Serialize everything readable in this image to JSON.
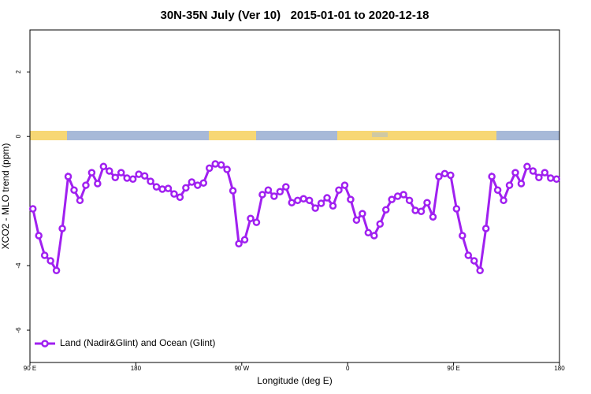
{
  "chart_data": {
    "type": "line",
    "title": "30N-35N July (Ver 10)   2015-01-01 to 2020-12-18",
    "x_label": "Longitude (deg E)",
    "y_label": "XCO2 - MLO trend (ppm)",
    "x": [
      92.5,
      97.5,
      102.5,
      107.5,
      112.5,
      117.5,
      122.5,
      127.5,
      132.5,
      137.5,
      142.5,
      147.5,
      152.5,
      157.5,
      162.5,
      167.5,
      172.5,
      177.5,
      182.5,
      187.5,
      192.5,
      197.5,
      202.5,
      207.5,
      212.5,
      217.5,
      222.5,
      227.5,
      232.5,
      237.5,
      242.5,
      247.5,
      252.5,
      257.5,
      262.5,
      267.5,
      272.5,
      277.5,
      282.5,
      287.5,
      292.5,
      297.5,
      302.5,
      307.5,
      312.5,
      317.5,
      322.5,
      327.5,
      332.5,
      337.5,
      342.5,
      347.5,
      352.5,
      357.5,
      362.5,
      367.5,
      372.5,
      377.5,
      382.5,
      387.5,
      392.5,
      397.5,
      402.5,
      407.5,
      412.5,
      417.5,
      422.5,
      427.5,
      432.5,
      437.5,
      442.5,
      447.5,
      452.5,
      457.5,
      462.5,
      467.5,
      472.5,
      477.5,
      482.5,
      487.5,
      492.5,
      497.5,
      502.5,
      507.5,
      512.5,
      517.5,
      522.5,
      527.5,
      532.5,
      537.5
    ],
    "series": [
      {
        "name": "Land (Nadir&Glint) and Ocean (Glint)",
        "color": "#a020f0",
        "values": [
          -2.24,
          -3.07,
          -3.68,
          -3.85,
          -4.15,
          -2.85,
          -1.24,
          -1.66,
          -1.98,
          -1.51,
          -1.12,
          -1.46,
          -0.93,
          -1.07,
          -1.27,
          -1.12,
          -1.29,
          -1.32,
          -1.17,
          -1.22,
          -1.39,
          -1.56,
          -1.63,
          -1.61,
          -1.78,
          -1.88,
          -1.59,
          -1.41,
          -1.51,
          -1.44,
          -0.98,
          -0.85,
          -0.88,
          -1.02,
          -1.68,
          -3.32,
          -3.2,
          -2.54,
          -2.66,
          -1.8,
          -1.66,
          -1.85,
          -1.71,
          -1.56,
          -2.05,
          -1.98,
          -1.93,
          -1.98,
          -2.22,
          -2.07,
          -1.9,
          -2.15,
          -1.66,
          -1.51,
          -1.95,
          -2.59,
          -2.39,
          -2.98,
          -3.07,
          -2.71,
          -2.27,
          -1.95,
          -1.85,
          -1.8,
          -1.98,
          -2.29,
          -2.32,
          -2.05,
          -2.49,
          -1.24,
          -1.15,
          -1.2,
          -2.24,
          -3.07,
          -3.68,
          -3.85,
          -4.15,
          -2.85,
          -1.24,
          -1.66,
          -1.98,
          -1.51,
          -1.12,
          -1.46,
          -0.93,
          -1.07,
          -1.27,
          -1.12,
          -1.29,
          -1.32
        ]
      }
    ],
    "xlim": [
      90,
      540
    ],
    "xticks": [
      {
        "value": 90,
        "label": "90 E"
      },
      180,
      {
        "value": 270,
        "label": "90 W"
      },
      {
        "value": 360,
        "label": "0"
      },
      {
        "value": 450,
        "label": "90 E"
      },
      {
        "value": 540,
        "label": "180"
      }
    ],
    "ylim": [
      -7,
      3.3
    ],
    "yticks": [
      -6,
      -4,
      0,
      2
    ],
    "legend": "bottom-left"
  }
}
